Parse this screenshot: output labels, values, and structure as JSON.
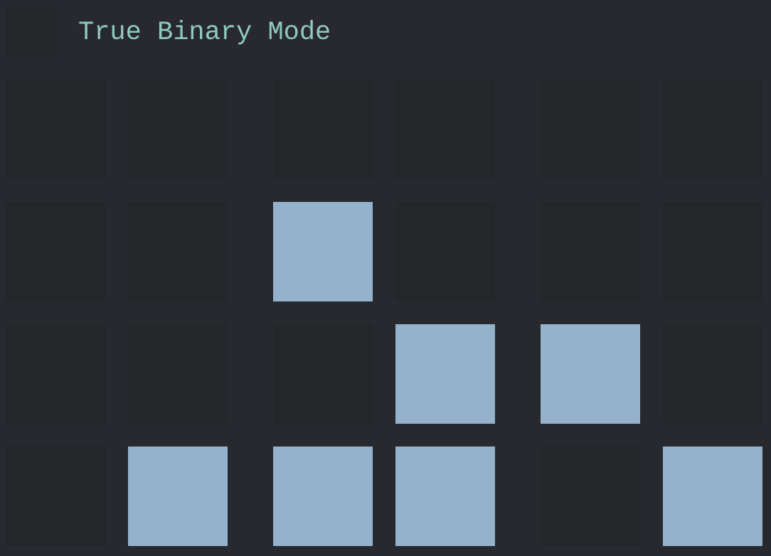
{
  "header": {
    "title": "True Binary Mode",
    "mode_toggle_icon": "square-toggle-icon"
  },
  "colors": {
    "background": "#28292e",
    "cell_off": "#25262a",
    "cell_on": "#94b2cb",
    "title": "#8fc9c0"
  },
  "grid": {
    "rows": [
      [
        0,
        0,
        0,
        0,
        0,
        0
      ],
      [
        0,
        0,
        1,
        0,
        0,
        0
      ],
      [
        0,
        0,
        0,
        1,
        1,
        0
      ],
      [
        0,
        1,
        1,
        1,
        0,
        1
      ]
    ]
  }
}
